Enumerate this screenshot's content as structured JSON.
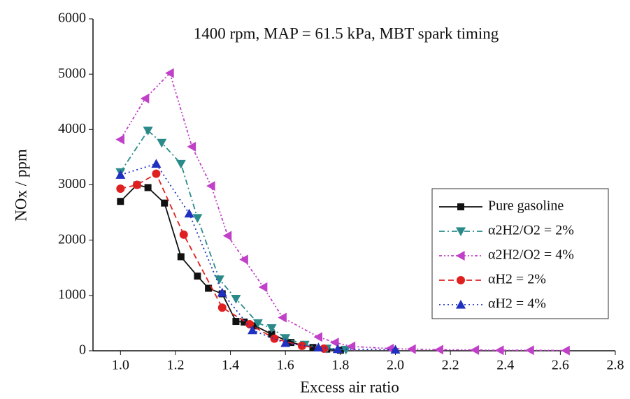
{
  "chart_data": {
    "type": "line",
    "title": "1400 rpm, MAP = 61.5 kPa, MBT spark timing",
    "x_label": "Excess air ratio",
    "y_label": "NOx / ppm",
    "xlim": [
      0.9,
      2.8
    ],
    "ylim": [
      0,
      6000
    ],
    "xticks": [
      {
        "value": 1,
        "label": "1.0"
      },
      {
        "value": 1.2,
        "label": "1.2"
      },
      {
        "value": 1.4,
        "label": "1.4"
      },
      {
        "value": 1.6,
        "label": "1.6"
      },
      {
        "value": 1.8,
        "label": "1.8"
      },
      {
        "value": 2,
        "label": "2.0"
      },
      {
        "value": 2.2,
        "label": "2.2"
      },
      {
        "value": 2.4,
        "label": "2.4"
      },
      {
        "value": 2.6,
        "label": "2.6"
      },
      {
        "value": 2.8,
        "label": "2.8"
      }
    ],
    "yticks": [
      0,
      1000,
      2000,
      3000,
      4000,
      5000,
      6000
    ],
    "legend": "lower right",
    "series": [
      {
        "name": "Pure gasoline",
        "color": "#111111",
        "marker": "square",
        "linestyle": "solid",
        "x": [
          1.0,
          1.06,
          1.1,
          1.16,
          1.22,
          1.28,
          1.32,
          1.37,
          1.42,
          1.45,
          1.49,
          1.55,
          1.62,
          1.7,
          1.75,
          1.8
        ],
        "values": [
          2700,
          3000,
          2950,
          2670,
          1700,
          1350,
          1130,
          1030,
          530,
          520,
          450,
          300,
          150,
          60,
          30,
          10
        ]
      },
      {
        "name": "α2H2/O2 = 2%",
        "color": "#2a8a8a",
        "marker": "down",
        "linestyle": "dashdot",
        "x": [
          1.0,
          1.1,
          1.15,
          1.22,
          1.28,
          1.36,
          1.42,
          1.5,
          1.55,
          1.6,
          1.67,
          1.75,
          1.82
        ],
        "values": [
          3230,
          3980,
          3760,
          3380,
          2400,
          1290,
          940,
          500,
          410,
          230,
          110,
          40,
          20
        ]
      },
      {
        "name": "α2H2/O2 = 4%",
        "color": "#c040c8",
        "marker": "left",
        "linestyle": "dashdotdot",
        "x": [
          1.0,
          1.09,
          1.18,
          1.26,
          1.33,
          1.39,
          1.45,
          1.52,
          1.59,
          1.72,
          1.78,
          1.84,
          1.98,
          2.06,
          2.16,
          2.29,
          2.38,
          2.49,
          2.62
        ],
        "values": [
          3820,
          4560,
          5020,
          3690,
          2980,
          2080,
          1650,
          1150,
          600,
          250,
          150,
          80,
          40,
          30,
          20,
          15,
          10,
          10,
          5
        ]
      },
      {
        "name": "αH2 = 2%",
        "color": "#e02020",
        "marker": "circle",
        "linestyle": "dashed",
        "x": [
          1.0,
          1.06,
          1.13,
          1.23,
          1.37,
          1.47,
          1.56,
          1.66,
          1.74
        ],
        "values": [
          2930,
          3000,
          3200,
          2100,
          780,
          480,
          220,
          90,
          40
        ]
      },
      {
        "name": "αH2 = 4%",
        "color": "#2030c0",
        "marker": "up",
        "linestyle": "dotted",
        "x": [
          1.0,
          1.13,
          1.25,
          1.37,
          1.48,
          1.6,
          1.72,
          1.79,
          2.0
        ],
        "values": [
          3180,
          3380,
          2480,
          1050,
          370,
          140,
          60,
          30,
          20
        ]
      }
    ]
  }
}
